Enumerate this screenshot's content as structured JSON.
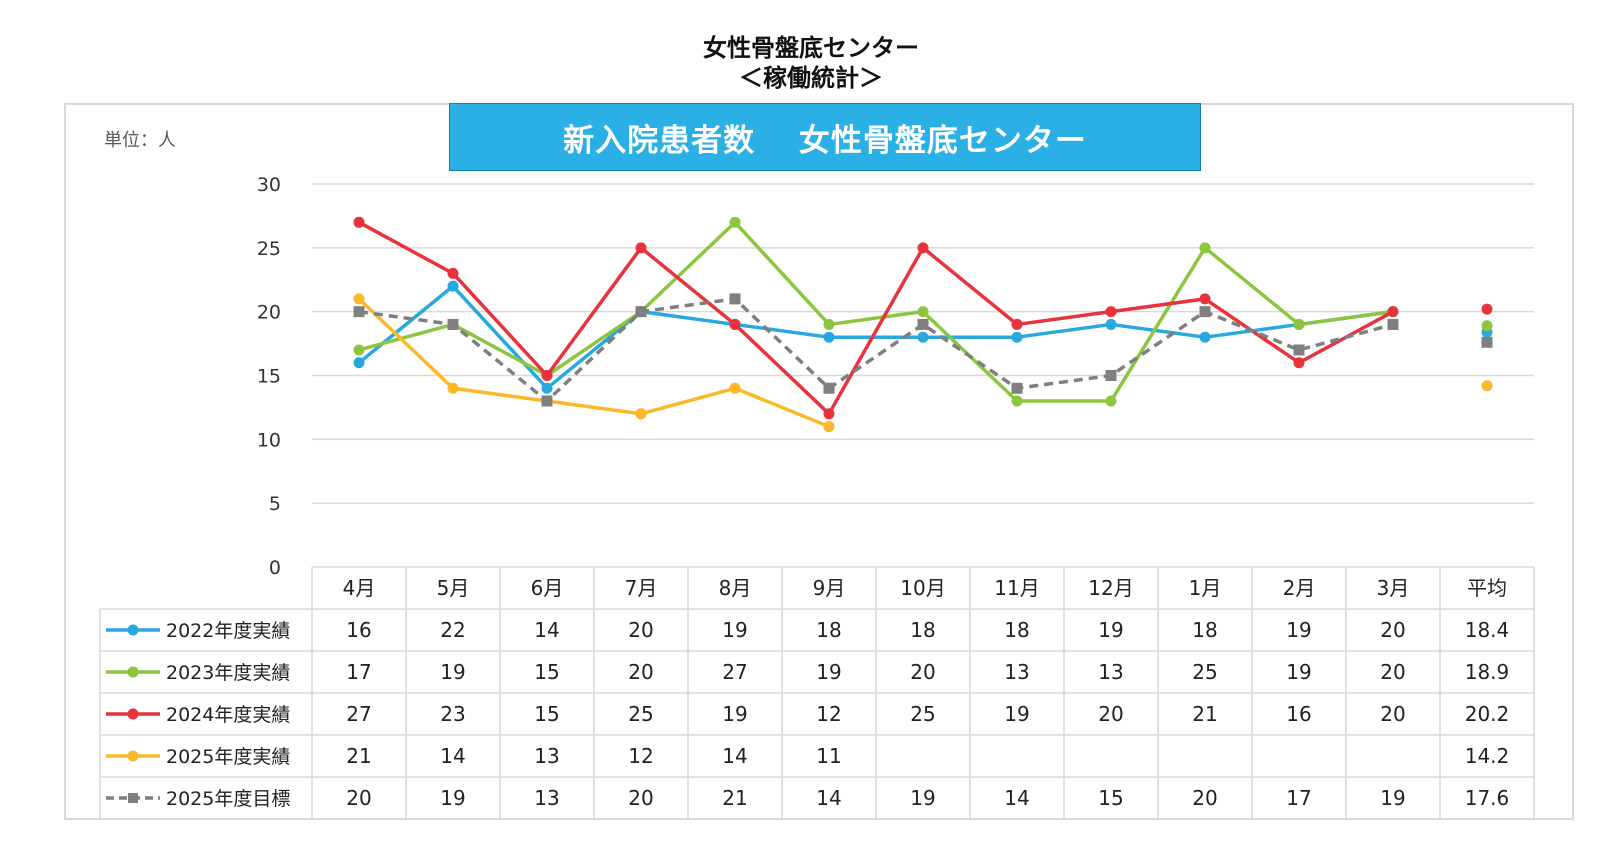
{
  "page_title": {
    "line1": "女性骨盤底センター",
    "line2": "＜稼働統計＞"
  },
  "chart_data": {
    "type": "line",
    "title": "新入院患者数　 女性骨盤底センター",
    "unit_label": "単位：人",
    "categories": [
      "4月",
      "5月",
      "6月",
      "7月",
      "8月",
      "9月",
      "10月",
      "11月",
      "12月",
      "1月",
      "2月",
      "3月"
    ],
    "average_label": "平均",
    "ylim": [
      0,
      30
    ],
    "y_ticks": [
      0,
      5,
      10,
      15,
      20,
      25,
      30
    ],
    "grid": true,
    "series": [
      {
        "name": "2022年度実績",
        "color": "#29a8e0",
        "dashed": false,
        "marker": "circle",
        "values": [
          16,
          22,
          14,
          20,
          19,
          18,
          18,
          18,
          19,
          18,
          19,
          20
        ],
        "average": 18.4
      },
      {
        "name": "2023年度実績",
        "color": "#8cc63f",
        "dashed": false,
        "marker": "circle",
        "values": [
          17,
          19,
          15,
          20,
          27,
          19,
          20,
          13,
          13,
          25,
          19,
          20
        ],
        "average": 18.9
      },
      {
        "name": "2024年度実績",
        "color": "#e8323c",
        "dashed": false,
        "marker": "circle",
        "values": [
          27,
          23,
          15,
          25,
          19,
          12,
          25,
          19,
          20,
          21,
          16,
          20
        ],
        "average": 20.2
      },
      {
        "name": "2025年度実績",
        "color": "#fbb829",
        "dashed": false,
        "marker": "circle",
        "values": [
          21,
          14,
          13,
          12,
          14,
          11,
          null,
          null,
          null,
          null,
          null,
          null
        ],
        "average": 14.2
      },
      {
        "name": "2025年度目標",
        "color": "#7f7f7f",
        "dashed": true,
        "marker": "square",
        "values": [
          20,
          19,
          13,
          20,
          21,
          14,
          19,
          14,
          15,
          20,
          17,
          19
        ],
        "average": 17.6
      }
    ]
  }
}
